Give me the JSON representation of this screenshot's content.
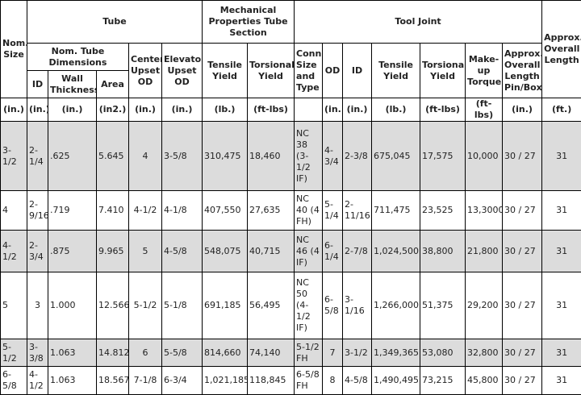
{
  "headers": {
    "nom_size": "Nom. Size",
    "tube": "Tube",
    "mechanical": "Mechanical Properties Tube Section",
    "tool_joint": "Tool Joint",
    "approx_overall_length": "Approx. Overall Length",
    "nom_tube_dimensions": "Nom. Tube Dimensions",
    "center_upset_od": "Center Upset OD",
    "elevator_upset_od": "Elevator Upset OD",
    "tensile_yield": "Tensile Yield",
    "torsional_yield": "Torsional Yield",
    "conn_size_type": "Conn. Size and Type",
    "od": "OD",
    "id": "ID",
    "tj_tensile_yield": "Tensile Yield",
    "tj_torsional_yield": "Torsional Yield",
    "makeup_torque": "Make-up Torque",
    "approx_overall_length_pin_box": "Approx. Overall Length Pin/Box",
    "tube_id": "ID",
    "wall_thickness": "Wall Thickness",
    "area": "Area"
  },
  "units": [
    "(in.)",
    "(in.)",
    "(in.)",
    "(in2.)",
    "(in.)",
    "(in.)",
    "(lb.)",
    "(ft-lbs)",
    "",
    "(in.)",
    "(in.)",
    "(lb.)",
    "(ft-lbs)",
    "(ft-lbs)",
    "(in.)",
    "(ft.)"
  ],
  "rows": [
    [
      "3-1/2",
      "2-1/4",
      ".625",
      "5.645",
      "4",
      "3-5/8",
      "310,475",
      "18,460",
      "NC 38 (3-1/2 IF)",
      "4-3/4",
      "2-3/8",
      "675,045",
      "17,575",
      "10,000",
      "30 / 27",
      "31"
    ],
    [
      "4",
      "2-9/16",
      ".719",
      "7.410",
      "4-1/2",
      "4-1/8",
      "407,550",
      "27,635",
      "NC 40 (4 FH)",
      "5-1/4",
      "2-11/16",
      "711,475",
      "23,525",
      "13,3000",
      "30 / 27",
      "31"
    ],
    [
      "4-1/2",
      "2-3/4",
      ".875",
      "9.965",
      "5",
      "4-5/8",
      "548,075",
      "40,715",
      "NC 46 (4 IF)",
      "6-1/4",
      "2-7/8",
      "1,024,500",
      "38,800",
      "21,800",
      "30 / 27",
      "31"
    ],
    [
      "5",
      "3",
      "1.000",
      "12.566",
      "5-1/2",
      "5-1/8",
      "691,185",
      "56,495",
      "NC 50 (4-1/2 IF)",
      "6-5/8",
      "3-1/16",
      "1,266,000",
      "51,375",
      "29,200",
      "30 / 27",
      "31"
    ],
    [
      "5-1/2",
      "3-3/8",
      "1.063",
      "14.812",
      "6",
      "5-5/8",
      "814,660",
      "74,140",
      "5-1/2 FH",
      "7",
      "3-1/2",
      "1,349,365",
      "53,080",
      "32,800",
      "30 / 27",
      "31"
    ],
    [
      "6-5/8",
      "4-1/2",
      "1.063",
      "18.567",
      "7-1/8",
      "6-3/4",
      "1,021,185",
      "118,845",
      "6-5/8 FH",
      "8",
      "4-5/8",
      "1,490,495",
      "73,215",
      "45,800",
      "30 / 27",
      "31"
    ]
  ]
}
